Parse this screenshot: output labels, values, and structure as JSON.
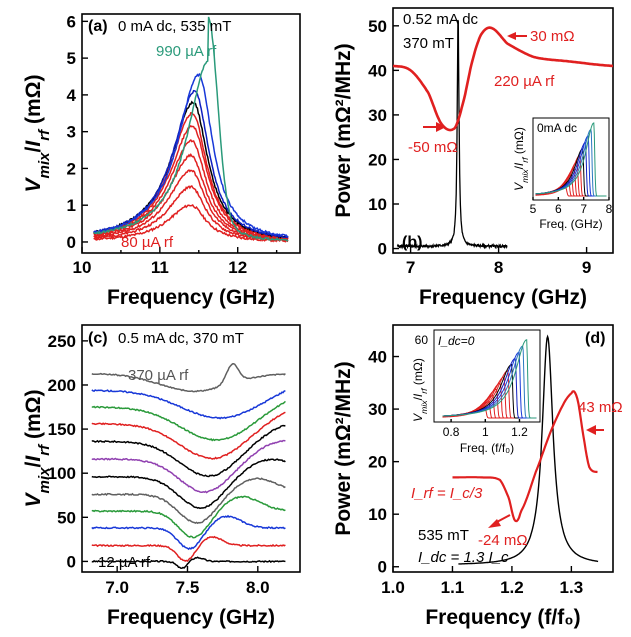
{
  "chart_data": [
    {
      "panel_label": "(a)",
      "type": "line",
      "annotation_top": "0 mA dc,  535 mT",
      "annotation_top_rf": "990 µA rf",
      "annotation_bottom_rf": "80 µA rf",
      "ylabel": "V_mix/I_rf (mΩ)",
      "xlabel": "Frequency (GHz)",
      "xlim": [
        10,
        12.8
      ],
      "ylim": [
        -0.3,
        6.2
      ],
      "xticks": [
        "10",
        "11",
        "12"
      ],
      "yticks": [
        "0",
        "1",
        "2",
        "3",
        "4",
        "5",
        "6"
      ],
      "series": [
        {
          "color": "#e02020",
          "peak": 1.0,
          "center": 11.4,
          "width": 0.46
        },
        {
          "color": "#e02020",
          "peak": 1.5,
          "center": 11.4,
          "width": 0.46
        },
        {
          "color": "#e02020",
          "peak": 1.95,
          "center": 11.4,
          "width": 0.46
        },
        {
          "color": "#e02020",
          "peak": 2.35,
          "center": 11.4,
          "width": 0.46
        },
        {
          "color": "#e02020",
          "peak": 2.75,
          "center": 11.41,
          "width": 0.46
        },
        {
          "color": "#e02020",
          "peak": 3.15,
          "center": 11.42,
          "width": 0.46
        },
        {
          "color": "#e02020",
          "peak": 3.5,
          "center": 11.42,
          "width": 0.45
        },
        {
          "color": "#000000",
          "peak": 3.8,
          "center": 11.43,
          "width": 0.45
        },
        {
          "color": "#1020c0",
          "peak": 4.1,
          "center": 11.45,
          "width": 0.44
        },
        {
          "color": "#1838d8",
          "peak": 4.55,
          "center": 11.5,
          "width": 0.43
        },
        {
          "color": "#2a9a7a",
          "peak": 4.9,
          "center": 11.62,
          "width": 0.42
        }
      ]
    },
    {
      "panel_label": "(b)",
      "type": "line",
      "annotation_top": "0.52 mA dc",
      "annotation_field": "370 mT",
      "annotation_max": "30 mΩ",
      "annotation_min": "-50 mΩ",
      "annotation_rf": "220 µA rf",
      "ylabel": "Power (mΩ²/MHz)",
      "xlabel": "Frequency (GHz)",
      "xlim": [
        6.8,
        9.3
      ],
      "ylim": [
        -1,
        54
      ],
      "xticks": [
        "7",
        "8",
        "9"
      ],
      "yticks": [
        "0",
        "10",
        "20",
        "30",
        "40",
        "50"
      ],
      "series": [
        {
          "name": "power",
          "color": "#000000",
          "peak_x": 7.54,
          "peak_y": 52,
          "baseline": 0.5
        },
        {
          "name": "mixing",
          "color": "#e02020",
          "x": [
            6.8,
            7.0,
            7.2,
            7.35,
            7.5,
            7.6,
            7.7,
            7.8,
            7.92,
            8.1,
            8.4,
            8.8,
            9.3
          ],
          "y": [
            41,
            40,
            35,
            28,
            27,
            33,
            42,
            48,
            49.5,
            46,
            43,
            42,
            41
          ]
        }
      ],
      "inset": {
        "annotation": "0mA dc",
        "ylabel": "V_mix/I_rf (mΩ)",
        "xlabel": "Freq. (GHz)",
        "xlim": [
          5,
          8
        ],
        "xticks": [
          "5",
          "6",
          "7",
          "8"
        ]
      }
    },
    {
      "panel_label": "(c)",
      "type": "line",
      "annotation_top": "0.5 mA dc,  370 mT",
      "annotation_top_rf": "370 µA rf",
      "annotation_bottom_rf": "12 µA rf",
      "ylabel": "V_mix/I_rf (mΩ)",
      "xlabel": "Frequency (GHz)",
      "xlim": [
        6.75,
        8.3
      ],
      "ylim": [
        -12,
        268
      ],
      "xticks": [
        "7.0",
        "7.5",
        "8.0"
      ],
      "yticks": [
        "0",
        "50",
        "100",
        "150",
        "200",
        "250"
      ],
      "series": [
        {
          "color": "#000000",
          "offset": 0,
          "depth": 8
        },
        {
          "color": "#e02020",
          "offset": 18,
          "depth": 18
        },
        {
          "color": "#1838d8",
          "offset": 38,
          "depth": 24
        },
        {
          "color": "#2a9a3a",
          "offset": 57,
          "depth": 30
        },
        {
          "color": "#606060",
          "offset": 76,
          "depth": 33
        },
        {
          "color": "#000000",
          "offset": 96,
          "depth": 36
        },
        {
          "color": "#9040b0",
          "offset": 116,
          "depth": 38
        },
        {
          "color": "#000000",
          "offset": 136,
          "depth": 40
        },
        {
          "color": "#e02020",
          "offset": 156,
          "depth": 40
        },
        {
          "color": "#2a9a3a",
          "offset": 175,
          "depth": 38
        },
        {
          "color": "#1838d8",
          "offset": 194,
          "depth": 32
        },
        {
          "color": "#606060",
          "offset": 213,
          "depth": 22
        }
      ]
    },
    {
      "panel_label": "(d)",
      "type": "line",
      "annotation_max": "43 mΩ",
      "annotation_min": "-24 mΩ",
      "annotation_rf": "I_rf = I_c/3",
      "annotation_field": "535 mT",
      "annotation_dc": "I_dc = 1.3 I_c",
      "ylabel": "Power (mΩ²/MHz)",
      "xlabel": "Frequency (f/f₀)",
      "xlim": [
        1.0,
        1.37
      ],
      "ylim": [
        -1,
        46
      ],
      "xticks": [
        "1.0",
        "1.1",
        "1.2",
        "1.3"
      ],
      "yticks": [
        "0",
        "10",
        "20",
        "30",
        "40"
      ],
      "series": [
        {
          "name": "power",
          "color": "#000000",
          "peak_x": 1.26,
          "peak_y": 43.5
        },
        {
          "name": "mixing",
          "color": "#e02020",
          "x": [
            1.1,
            1.15,
            1.18,
            1.195,
            1.205,
            1.215,
            1.24,
            1.27,
            1.3,
            1.31,
            1.32,
            1.33,
            1.345
          ],
          "y": [
            17,
            17,
            16.5,
            13,
            8.8,
            10.5,
            18,
            27,
            33,
            32,
            25,
            19,
            18
          ]
        }
      ],
      "inset": {
        "annotation": "I_dc=0",
        "ylabel": "V_mix/I_rf (mΩ)",
        "xlabel": "Freq. (f/f₀)",
        "ytick_top": "60",
        "xticks": [
          "0.8",
          "1",
          "1.2"
        ]
      }
    }
  ]
}
